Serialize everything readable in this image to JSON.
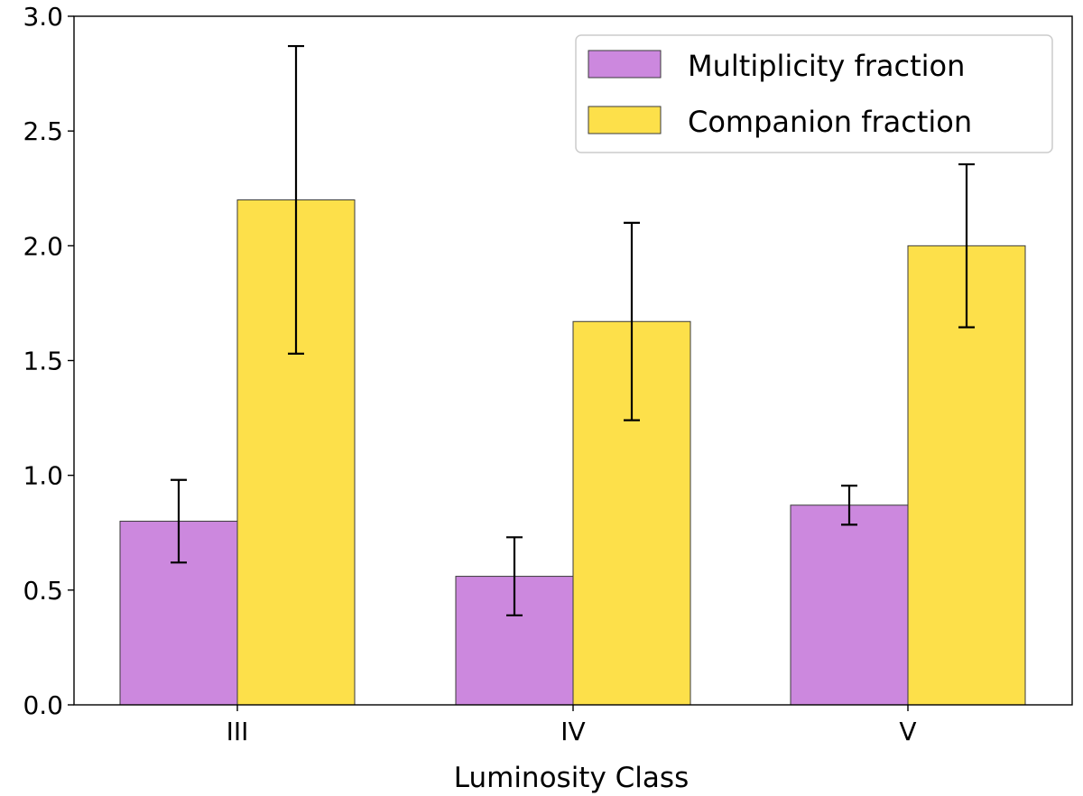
{
  "chart_data": {
    "type": "bar",
    "title": "",
    "xlabel": "Luminosity Class",
    "ylabel": "",
    "categories": [
      "III",
      "IV",
      "V"
    ],
    "ylim": [
      0,
      3.0
    ],
    "yticks": [
      0.0,
      0.5,
      1.0,
      1.5,
      2.0,
      2.5,
      3.0
    ],
    "ytick_labels": [
      "0.0",
      "0.5",
      "1.0",
      "1.5",
      "2.0",
      "2.5",
      "3.0"
    ],
    "grid": false,
    "legend_position": "top-right",
    "series": [
      {
        "name": "Multiplicity fraction",
        "color": "#cc88de",
        "values": [
          0.8,
          0.56,
          0.87
        ],
        "errors": [
          0.18,
          0.17,
          0.085
        ]
      },
      {
        "name": "Companion fraction",
        "color": "#fde04a",
        "values": [
          2.2,
          1.67,
          2.0
        ],
        "errors": [
          0.67,
          0.43,
          0.355
        ]
      }
    ]
  }
}
